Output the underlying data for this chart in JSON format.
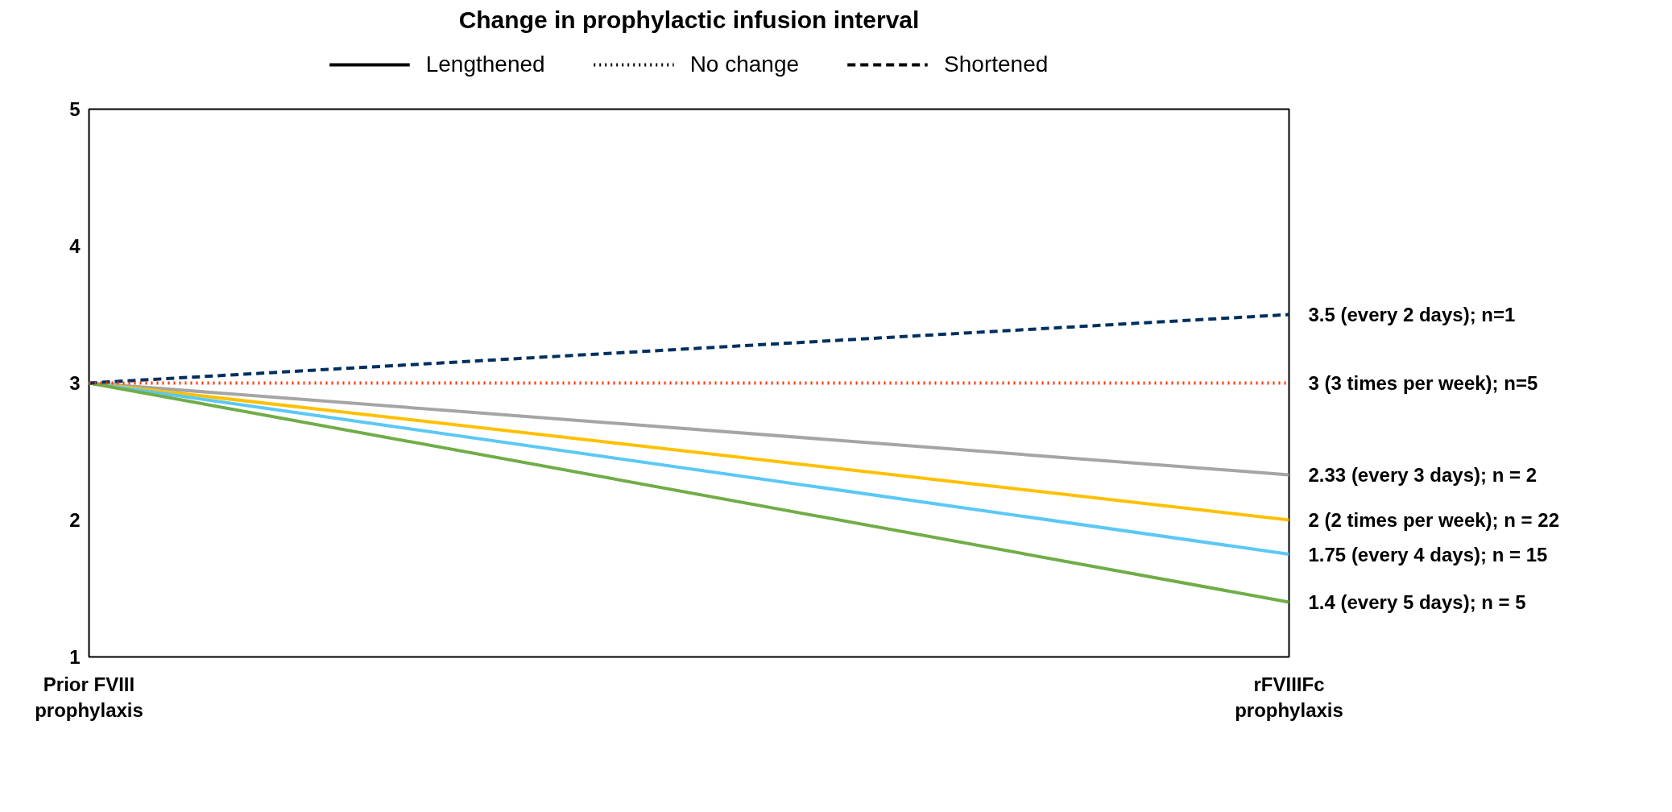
{
  "chart_data": {
    "type": "line",
    "title": "Change in prophylactic infusion interval",
    "categories": [
      "Prior FVIII\nprophylaxis",
      "rFVIIIFc\nprophylaxis"
    ],
    "series": [
      {
        "color": "#002f5f",
        "line_style": "dashed",
        "values": [
          3,
          3.5
        ]
      },
      {
        "color": "#ff3300",
        "line_style": "dotted",
        "values": [
          3,
          3
        ]
      },
      {
        "color": "#a5a5a5",
        "line_style": "solid",
        "values": [
          3,
          2.33
        ]
      },
      {
        "color": "#ffc000",
        "line_style": "solid",
        "values": [
          3,
          2
        ]
      },
      {
        "color": "#5bc8f5",
        "line_style": "solid",
        "values": [
          3,
          1.75
        ]
      },
      {
        "color": "#70ad47",
        "line_style": "solid",
        "values": [
          3,
          1.4
        ]
      }
    ],
    "annotations": [
      "Lengthened",
      "No change",
      "Shortened",
      {
        "text": "3.5 (every 2 days); n=1",
        "x": "rFVIIIFc\nprophylaxis",
        "y": 3.5
      },
      {
        "text": "3 (3 times per week); n=5",
        "x": "rFVIIIFc\nprophylaxis",
        "y": 3
      },
      {
        "text": "2.33 (every 3 days); n = 2",
        "x": "rFVIIIFc\nprophylaxis",
        "y": 2.33
      },
      {
        "text": "2 (2 times per week); n = 22",
        "x": "rFVIIIFc\nprophylaxis",
        "y": 2
      },
      {
        "text": "1.75 (every 4 days); n = 15",
        "x": "rFVIIIFc\nprophylaxis",
        "y": 1.75
      },
      {
        "text": "1.4 (every 5 days); n = 5",
        "x": "rFVIIIFc\nprophylaxis",
        "y": 1.4
      }
    ],
    "ylim": [
      1,
      5
    ],
    "yticks": [
      1,
      2,
      3,
      4,
      5
    ],
    "grid": false,
    "marker": "none"
  }
}
